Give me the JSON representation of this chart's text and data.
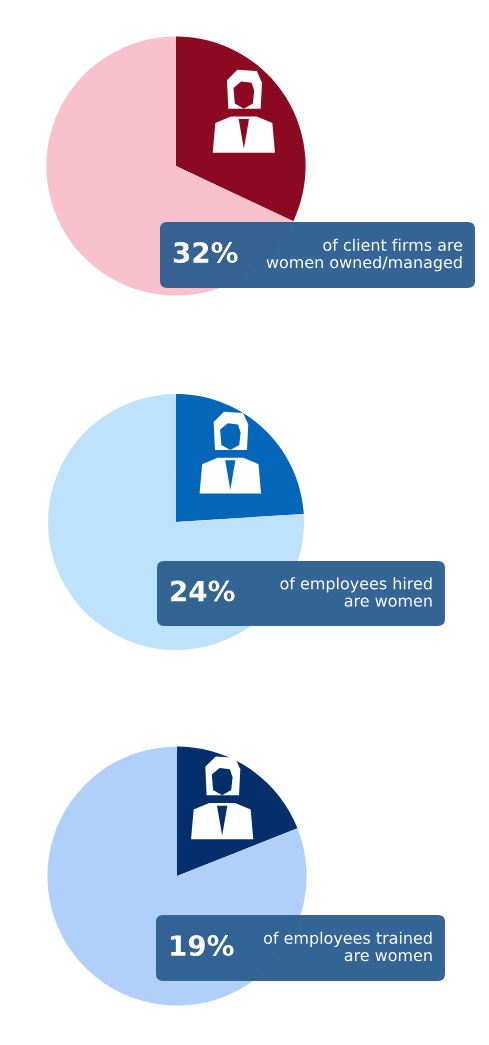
{
  "chart_data": [
    {
      "type": "pie",
      "categories": [
        null,
        null
      ],
      "values": [
        32,
        68
      ],
      "colors": [
        "#8b0a22",
        "#f8c1cd"
      ],
      "annotations": [
        "32%",
        "of client firms are\nwomen owned/managed"
      ]
    },
    {
      "type": "pie",
      "categories": [
        null,
        null
      ],
      "values": [
        24,
        76
      ],
      "colors": [
        "#0366b8",
        "#bfe2fc"
      ],
      "annotations": [
        "24%",
        "of employees hired\nare women"
      ]
    },
    {
      "type": "pie",
      "categories": [
        null,
        null
      ],
      "values": [
        19,
        81
      ],
      "colors": [
        "#042f6b",
        "#b0d0fb"
      ],
      "annotations": [
        "19%",
        "of employees trained\nare women"
      ]
    }
  ]
}
